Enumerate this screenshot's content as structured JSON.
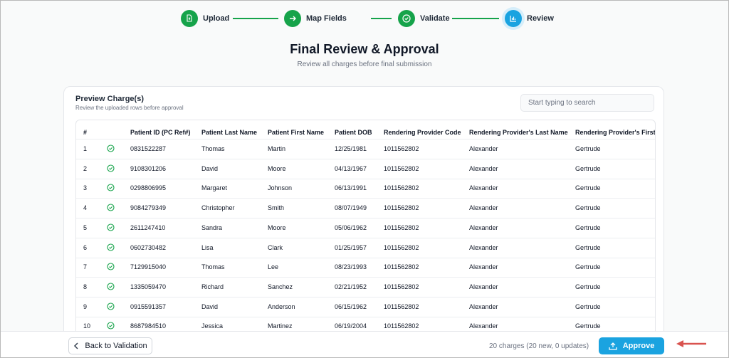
{
  "stepper": {
    "steps": [
      "Upload",
      "Map Fields",
      "Validate",
      "Review"
    ]
  },
  "header": {
    "title": "Final Review & Approval",
    "subtitle": "Review all charges before final submission"
  },
  "card": {
    "title": "Preview Charge(s)",
    "subtitle": "Review the uploaded rows before approval",
    "search_placeholder": "Start typing to search"
  },
  "table": {
    "headers": [
      "#",
      "Patient ID (PC Ref#)",
      "Patient Last Name",
      "Patient First Name",
      "Patient DOB",
      "Rendering Provider Code",
      "Rendering Provider's Last Name",
      "Rendering Provider's First Na"
    ],
    "rows": [
      [
        "1",
        "0831522287",
        "Thomas",
        "Martin",
        "12/25/1981",
        "1011562802",
        "Alexander",
        "Gertrude"
      ],
      [
        "2",
        "9108301206",
        "David",
        "Moore",
        "04/13/1967",
        "1011562802",
        "Alexander",
        "Gertrude"
      ],
      [
        "3",
        "0298806995",
        "Margaret",
        "Johnson",
        "06/13/1991",
        "1011562802",
        "Alexander",
        "Gertrude"
      ],
      [
        "4",
        "9084279349",
        "Christopher",
        "Smith",
        "08/07/1949",
        "1011562802",
        "Alexander",
        "Gertrude"
      ],
      [
        "5",
        "2611247410",
        "Sandra",
        "Moore",
        "05/06/1962",
        "1011562802",
        "Alexander",
        "Gertrude"
      ],
      [
        "6",
        "0602730482",
        "Lisa",
        "Clark",
        "01/25/1957",
        "1011562802",
        "Alexander",
        "Gertrude"
      ],
      [
        "7",
        "7129915040",
        "Thomas",
        "Lee",
        "08/23/1993",
        "1011562802",
        "Alexander",
        "Gertrude"
      ],
      [
        "8",
        "1335059470",
        "Richard",
        "Sanchez",
        "02/21/1952",
        "1011562802",
        "Alexander",
        "Gertrude"
      ],
      [
        "9",
        "0915591357",
        "David",
        "Anderson",
        "06/15/1962",
        "1011562802",
        "Alexander",
        "Gertrude"
      ],
      [
        "10",
        "8687984510",
        "Jessica",
        "Martinez",
        "06/19/2004",
        "1011562802",
        "Alexander",
        "Gertrude"
      ]
    ]
  },
  "footer": {
    "back_button": "Back to Validation",
    "summary": "20 charges (20 new, 0 updates)",
    "approve_button": "Approve"
  }
}
